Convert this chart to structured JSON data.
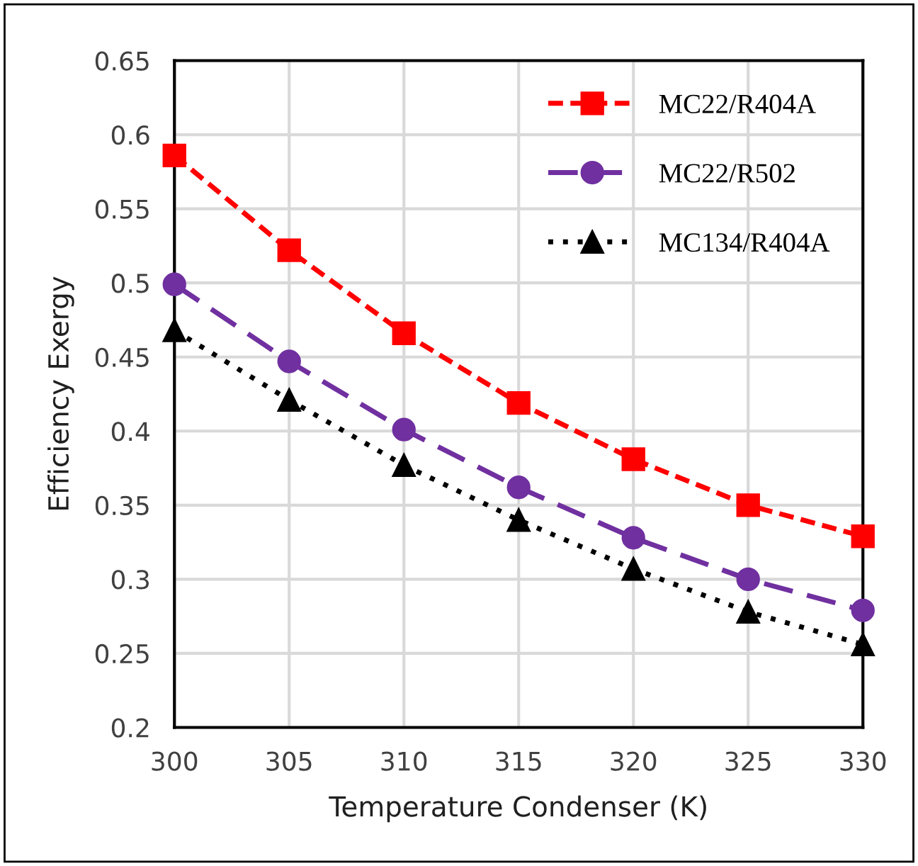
{
  "chart_data": {
    "type": "line",
    "xlabel": "Temperature Condenser (K)",
    "ylabel": "Efficiency Exergy",
    "x": [
      300,
      305,
      310,
      315,
      320,
      325,
      330
    ],
    "series": [
      {
        "name": "MC22/R404A",
        "color": "#ff0000",
        "marker": "square",
        "line_style": "dashed",
        "values": [
          0.586,
          0.522,
          0.466,
          0.419,
          0.381,
          0.35,
          0.329
        ]
      },
      {
        "name": "MC22/R502",
        "color": "#7030a0",
        "marker": "circle",
        "line_style": "loosely_dashed",
        "values": [
          0.499,
          0.447,
          0.401,
          0.362,
          0.328,
          0.3,
          0.279
        ]
      },
      {
        "name": "MC134/R404A",
        "color": "#000000",
        "marker": "triangle",
        "line_style": "dotted",
        "values": [
          0.468,
          0.421,
          0.377,
          0.34,
          0.307,
          0.278,
          0.256
        ]
      }
    ],
    "xlim": [
      300,
      330
    ],
    "xticks": [
      300,
      305,
      310,
      315,
      320,
      325,
      330
    ],
    "ylim": [
      0.2,
      0.65
    ],
    "yticks": [
      0.2,
      0.25,
      0.3,
      0.35,
      0.4,
      0.45,
      0.5,
      0.55,
      0.6,
      0.65
    ],
    "grid": true,
    "legend": "top right"
  }
}
